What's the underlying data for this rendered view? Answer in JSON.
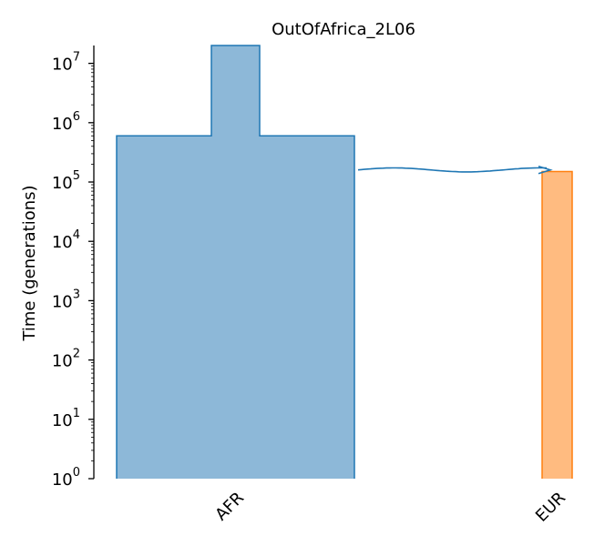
{
  "chart_data": {
    "type": "demography",
    "title": "OutOfAfrica_2L06",
    "ylabel": "Time (generations)",
    "yscale": "log",
    "ylim": [
      1,
      20000000
    ],
    "y_ticks": [
      {
        "base": "10",
        "exp": "0",
        "value": 1
      },
      {
        "base": "10",
        "exp": "1",
        "value": 10
      },
      {
        "base": "10",
        "exp": "2",
        "value": 100
      },
      {
        "base": "10",
        "exp": "3",
        "value": 1000
      },
      {
        "base": "10",
        "exp": "4",
        "value": 10000
      },
      {
        "base": "10",
        "exp": "5",
        "value": 100000
      },
      {
        "base": "10",
        "exp": "6",
        "value": 1000000
      },
      {
        "base": "10",
        "exp": "7",
        "value": 10000000
      }
    ],
    "categories": [
      "AFR",
      "EUR"
    ],
    "demes": [
      {
        "name": "AFR",
        "fill": "#8db8d8",
        "stroke": "#1f77b4",
        "epochs": [
          {
            "start_time": 600000,
            "end_time": 1,
            "size": "large"
          },
          {
            "start_time": 20000000,
            "end_time": 600000,
            "size": "ancestral"
          }
        ]
      },
      {
        "name": "EUR",
        "fill": "#ffbb80",
        "stroke": "#ff7f0e",
        "start_time": 150000,
        "end_time": 1,
        "ancestor": "AFR"
      }
    ],
    "migrations": [
      {
        "source": "AFR",
        "dest": "EUR",
        "time": 160000
      }
    ],
    "grid": false
  }
}
